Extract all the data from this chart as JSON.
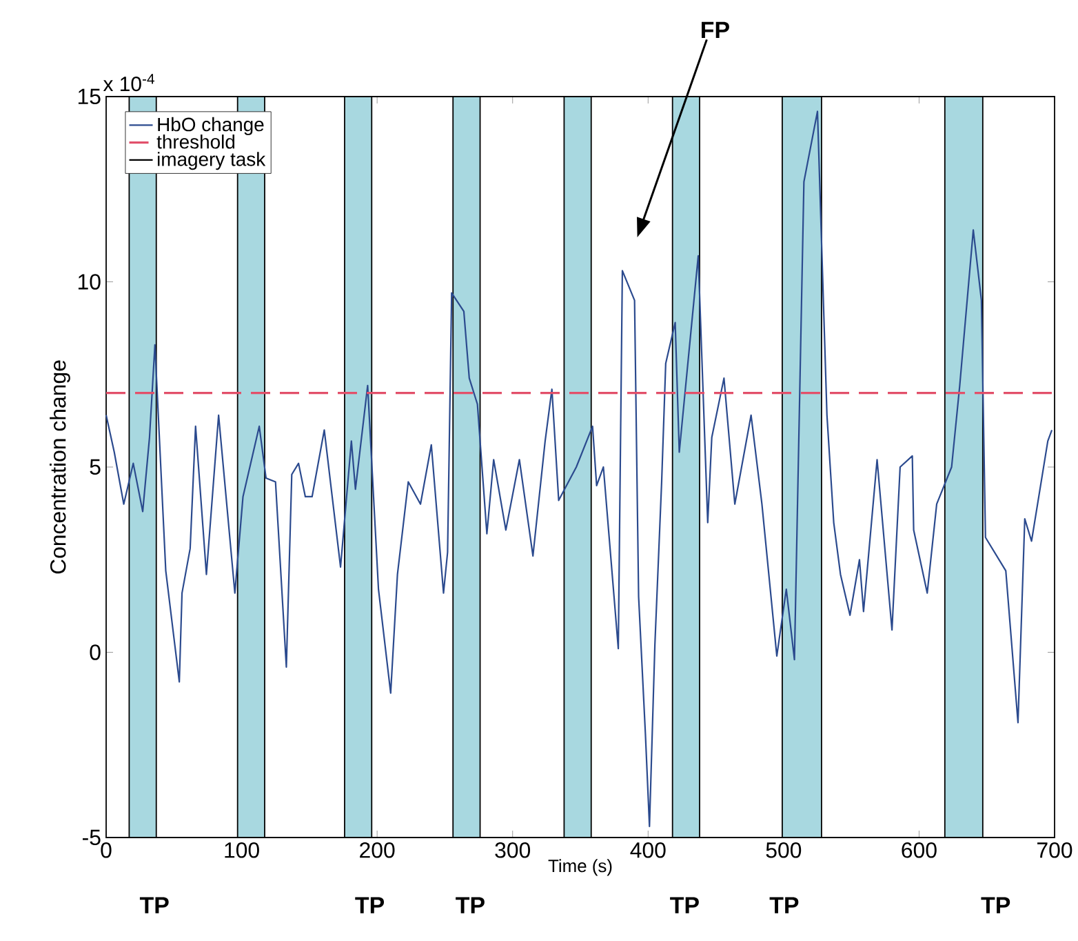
{
  "chart_data": {
    "type": "line",
    "xlabel": "Time (s)",
    "ylabel": "Concentration change",
    "xlim": [
      0,
      700
    ],
    "ylim": [
      -5,
      15
    ],
    "xticks": [
      0,
      100,
      200,
      300,
      400,
      500,
      600,
      700
    ],
    "yticks": [
      -5,
      0,
      5,
      10,
      15
    ],
    "legend": "top left",
    "grid": false,
    "marker": "none",
    "line_style": "solid",
    "series": [
      {
        "name": "HbO change",
        "color": "#2b4a8e",
        "x": [
          0,
          6,
          13,
          20,
          27,
          32,
          36,
          44,
          54,
          56,
          62,
          66,
          74,
          83,
          95,
          101,
          113,
          118,
          125,
          133,
          137,
          142,
          147,
          152,
          161,
          173,
          181,
          184,
          193,
          201,
          210,
          215,
          223,
          232,
          240,
          249,
          252,
          255,
          264,
          268,
          274,
          281,
          286,
          295,
          305,
          315,
          324,
          329,
          334,
          347,
          359,
          362,
          367,
          378,
          381,
          390,
          393,
          398,
          401,
          405,
          410,
          413,
          420,
          423,
          437,
          444,
          447,
          456,
          464,
          476,
          484,
          495,
          502,
          508,
          515,
          525,
          532,
          537,
          542,
          549,
          556,
          559,
          569,
          580,
          586,
          595,
          596,
          606,
          613,
          624,
          630,
          640,
          646,
          649,
          664,
          673,
          678,
          683,
          695,
          698
        ],
        "values": [
          6.4,
          5.4,
          4.0,
          5.1,
          3.8,
          5.8,
          8.3,
          2.2,
          -0.8,
          1.6,
          2.8,
          6.1,
          2.1,
          6.4,
          1.6,
          4.2,
          6.1,
          4.7,
          4.6,
          -0.4,
          4.8,
          5.1,
          4.2,
          4.2,
          6.0,
          2.3,
          5.7,
          4.4,
          7.2,
          1.7,
          -1.1,
          2.1,
          4.6,
          4.0,
          5.6,
          1.6,
          2.7,
          9.7,
          9.2,
          7.4,
          6.7,
          3.2,
          5.2,
          3.3,
          5.2,
          2.6,
          5.7,
          7.1,
          4.1,
          5.0,
          6.1,
          4.5,
          5.0,
          0.1,
          10.3,
          9.5,
          1.5,
          -2.2,
          -4.7,
          0.2,
          4.6,
          7.8,
          8.9,
          5.4,
          10.7,
          3.5,
          5.8,
          7.4,
          4.0,
          6.4,
          4.0,
          -0.1,
          1.7,
          -0.2,
          12.7,
          14.6,
          6.4,
          3.5,
          2.1,
          1.0,
          2.5,
          1.1,
          5.2,
          0.6,
          5.0,
          5.3,
          3.3,
          1.6,
          4.0,
          5.0,
          7.2,
          11.4,
          9.5,
          3.1,
          2.2,
          -1.9,
          3.6,
          3.0,
          5.7,
          6.0
        ]
      }
    ],
    "ref_lines": [
      {
        "axis": "y",
        "value": 7,
        "label": "threshold",
        "color": "#e2506a",
        "line_style": "dashed"
      }
    ],
    "bands": [
      {
        "axis": "x",
        "from": 17,
        "to": 37,
        "label": "imagery task",
        "color": "#a8d8e0"
      },
      {
        "axis": "x",
        "from": 97,
        "to": 117,
        "color": "#a8d8e0"
      },
      {
        "axis": "x",
        "from": 176,
        "to": 196,
        "color": "#a8d8e0"
      },
      {
        "axis": "x",
        "from": 256,
        "to": 276,
        "color": "#a8d8e0"
      },
      {
        "axis": "x",
        "from": 338,
        "to": 358,
        "color": "#a8d8e0"
      },
      {
        "axis": "x",
        "from": 418,
        "to": 438,
        "color": "#a8d8e0"
      },
      {
        "axis": "x",
        "from": 499,
        "to": 528,
        "color": "#a8d8e0"
      },
      {
        "axis": "x",
        "from": 619,
        "to": 647,
        "color": "#a8d8e0"
      }
    ],
    "annotations": [
      "x 10$^{-4}$",
      "FP",
      "TP",
      "TP",
      "TP",
      "TP",
      "TP",
      "TP"
    ]
  }
}
